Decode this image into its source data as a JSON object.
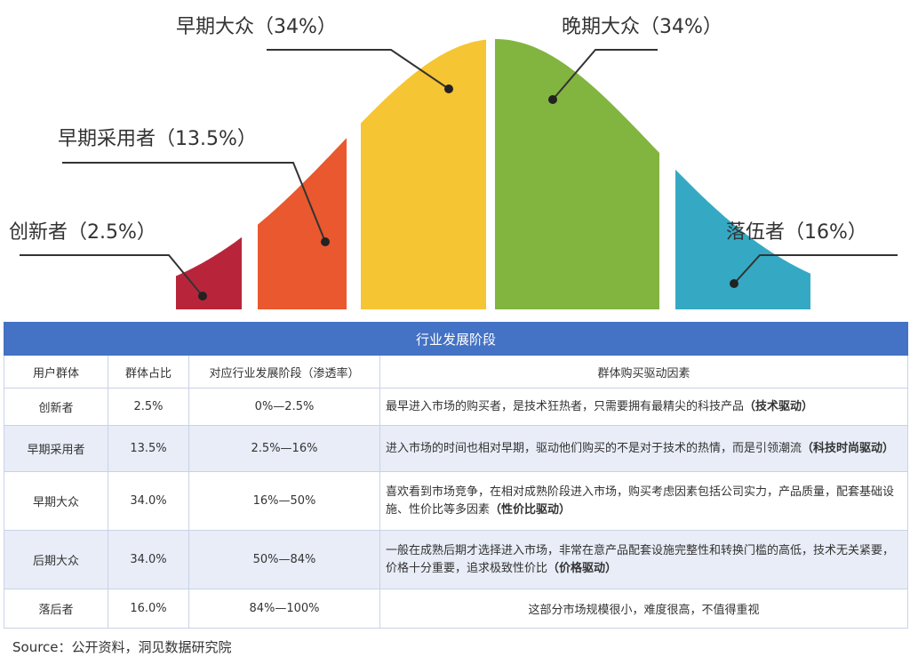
{
  "chart_data": {
    "type": "area",
    "categories": [
      "创新者",
      "早期采用者",
      "早期大众",
      "晚期大众",
      "落伍者"
    ],
    "values": [
      2.5,
      13.5,
      34,
      34,
      16
    ],
    "labels": [
      "创新者（2.5%）",
      "早期采用者（13.5%）",
      "早期大众（34%）",
      "晚期大众（34%）",
      "落伍者（16%）"
    ],
    "colors": [
      "#b8253a",
      "#e9582e",
      "#f6c533",
      "#82b440",
      "#35a9c3"
    ]
  },
  "table": {
    "title": "行业发展阶段",
    "headers": [
      "用户群体",
      "群体占比",
      "对应行业发展阶段（渗透率）",
      "群体购买驱动因素"
    ],
    "rows": [
      {
        "group": "创新者",
        "share": "2.5%",
        "stage": "0%—2.5%",
        "factor": "最早进入市场的购买者，是技术狂热者，只需要拥有最精尖的科技产品",
        "driver": "（技术驱动）"
      },
      {
        "group": "早期采用者",
        "share": "13.5%",
        "stage": "2.5%—16%",
        "factor": "进入市场的时间也相对早期，驱动他们购买的不是对于技术的热情，而是引领潮流",
        "driver": "（科技时尚驱动）"
      },
      {
        "group": "早期大众",
        "share": "34.0%",
        "stage": "16%—50%",
        "factor": "喜欢看到市场竞争，在相对成熟阶段进入市场，购买考虑因素包括公司实力，产品质量，配套基础设施、性价比等多因素",
        "driver": "（性价比驱动）"
      },
      {
        "group": "后期大众",
        "share": "34.0%",
        "stage": "50%—84%",
        "factor": "一般在成熟后期才选择进入市场，非常在意产品配套设施完整性和转换门槛的高低，技术无关紧要，价格十分重要，追求极致性价比",
        "driver": "（价格驱动）"
      },
      {
        "group": "落后者",
        "share": "16.0%",
        "stage": "84%—100%",
        "factor": "这部分市场规模很小，难度很高，不值得重视",
        "driver": ""
      }
    ]
  },
  "source": "Source：公开资料，洞见数据研究院"
}
